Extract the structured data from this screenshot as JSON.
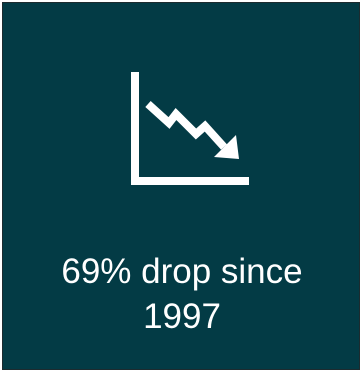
{
  "tile": {
    "background_color": "#033b45",
    "text_color": "#ffffff",
    "icon": "declining-line-chart-icon",
    "caption_line1": "69% drop since",
    "caption_line2": "1997"
  }
}
